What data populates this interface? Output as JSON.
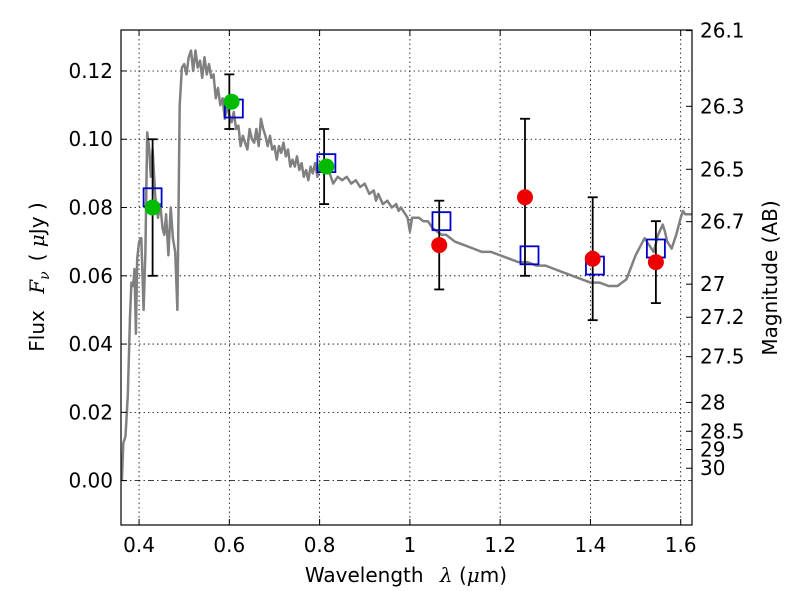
{
  "chart_data": {
    "type": "scatter",
    "xlabel": "Wavelength",
    "xlabel_symbol": "λ",
    "xlabel_unit_open": " (",
    "xlabel_unit_mu": "μ",
    "xlabel_unit_close": "m)",
    "ylabel": "Flux",
    "ylabel_symbol": "F",
    "ylabel_symbol_sub": "ν",
    "ylabel_unit_open": "( ",
    "ylabel_unit_mu": "μ",
    "ylabel_unit_close": "Jy )",
    "y2label": "Magnitude (AB)",
    "xlim": [
      0.36,
      1.625
    ],
    "ylim": [
      -0.013,
      0.132
    ],
    "grid": true,
    "x_ticks": [
      0.4,
      0.6,
      0.8,
      1.0,
      1.2,
      1.4,
      1.6
    ],
    "x_tick_labels": [
      "0.4",
      "0.6",
      "0.8",
      "1",
      "1.2",
      "1.4",
      "1.6"
    ],
    "y_ticks": [
      0.0,
      0.02,
      0.04,
      0.06,
      0.08,
      0.1,
      0.12
    ],
    "y_tick_labels": [
      "0.00",
      "0.02",
      "0.04",
      "0.06",
      "0.08",
      "0.10",
      "0.12"
    ],
    "y2_ticks": [
      {
        "mag": 26.1,
        "label": "26.1"
      },
      {
        "mag": 26.3,
        "label": "26.3"
      },
      {
        "mag": 26.5,
        "label": "26.5"
      },
      {
        "mag": 26.7,
        "label": "26.7"
      },
      {
        "mag": 27.0,
        "label": "27"
      },
      {
        "mag": 27.2,
        "label": "27.2"
      },
      {
        "mag": 27.5,
        "label": "27.5"
      },
      {
        "mag": 28.0,
        "label": "28"
      },
      {
        "mag": 28.5,
        "label": "28.5"
      },
      {
        "mag": 29.0,
        "label": "29"
      },
      {
        "mag": 30.0,
        "label": "30"
      }
    ],
    "series": [
      {
        "kind": "line",
        "color": "#808080",
        "points": [
          [
            0.362,
            0.0
          ],
          [
            0.365,
            0.011
          ],
          [
            0.37,
            0.013
          ],
          [
            0.375,
            0.025
          ],
          [
            0.38,
            0.048
          ],
          [
            0.383,
            0.058
          ],
          [
            0.387,
            0.057
          ],
          [
            0.39,
            0.062
          ],
          [
            0.393,
            0.043
          ],
          [
            0.396,
            0.065
          ],
          [
            0.4,
            0.07
          ],
          [
            0.405,
            0.071
          ],
          [
            0.41,
            0.05
          ],
          [
            0.414,
            0.067
          ],
          [
            0.418,
            0.102
          ],
          [
            0.422,
            0.098
          ],
          [
            0.426,
            0.089
          ],
          [
            0.43,
            0.097
          ],
          [
            0.436,
            0.083
          ],
          [
            0.442,
            0.077
          ],
          [
            0.447,
            0.081
          ],
          [
            0.452,
            0.074
          ],
          [
            0.456,
            0.072
          ],
          [
            0.46,
            0.078
          ],
          [
            0.465,
            0.066
          ],
          [
            0.47,
            0.08
          ],
          [
            0.475,
            0.071
          ],
          [
            0.48,
            0.067
          ],
          [
            0.485,
            0.05
          ],
          [
            0.49,
            0.11
          ],
          [
            0.495,
            0.121
          ],
          [
            0.5,
            0.122
          ],
          [
            0.505,
            0.119
          ],
          [
            0.51,
            0.124
          ],
          [
            0.515,
            0.126
          ],
          [
            0.52,
            0.12
          ],
          [
            0.525,
            0.126
          ],
          [
            0.53,
            0.121
          ],
          [
            0.535,
            0.123
          ],
          [
            0.54,
            0.118
          ],
          [
            0.545,
            0.124
          ],
          [
            0.55,
            0.119
          ],
          [
            0.555,
            0.122
          ],
          [
            0.56,
            0.118
          ],
          [
            0.565,
            0.119
          ],
          [
            0.57,
            0.112
          ],
          [
            0.575,
            0.115
          ],
          [
            0.58,
            0.11
          ],
          [
            0.585,
            0.112
          ],
          [
            0.59,
            0.106
          ],
          [
            0.595,
            0.11
          ],
          [
            0.6,
            0.107
          ],
          [
            0.605,
            0.105
          ],
          [
            0.61,
            0.108
          ],
          [
            0.615,
            0.103
          ],
          [
            0.62,
            0.104
          ],
          [
            0.625,
            0.098
          ],
          [
            0.63,
            0.101
          ],
          [
            0.635,
            0.099
          ],
          [
            0.64,
            0.097
          ],
          [
            0.645,
            0.103
          ],
          [
            0.65,
            0.1
          ],
          [
            0.655,
            0.099
          ],
          [
            0.66,
            0.103
          ],
          [
            0.665,
            0.098
          ],
          [
            0.67,
            0.106
          ],
          [
            0.675,
            0.103
          ],
          [
            0.68,
            0.101
          ],
          [
            0.685,
            0.098
          ],
          [
            0.69,
            0.101
          ],
          [
            0.695,
            0.097
          ],
          [
            0.7,
            0.098
          ],
          [
            0.705,
            0.094
          ],
          [
            0.71,
            0.098
          ],
          [
            0.715,
            0.096
          ],
          [
            0.72,
            0.099
          ],
          [
            0.725,
            0.095
          ],
          [
            0.73,
            0.097
          ],
          [
            0.735,
            0.092
          ],
          [
            0.74,
            0.094
          ],
          [
            0.745,
            0.092
          ],
          [
            0.75,
            0.095
          ],
          [
            0.755,
            0.091
          ],
          [
            0.76,
            0.093
          ],
          [
            0.765,
            0.089
          ],
          [
            0.77,
            0.091
          ],
          [
            0.775,
            0.088
          ],
          [
            0.78,
            0.092
          ],
          [
            0.785,
            0.09
          ],
          [
            0.79,
            0.093
          ],
          [
            0.795,
            0.089
          ],
          [
            0.8,
            0.092
          ],
          [
            0.81,
            0.09
          ],
          [
            0.82,
            0.091
          ],
          [
            0.83,
            0.087
          ],
          [
            0.84,
            0.089
          ],
          [
            0.85,
            0.088
          ],
          [
            0.86,
            0.089
          ],
          [
            0.87,
            0.087
          ],
          [
            0.88,
            0.088
          ],
          [
            0.89,
            0.086
          ],
          [
            0.9,
            0.087
          ],
          [
            0.91,
            0.084
          ],
          [
            0.92,
            0.085
          ],
          [
            0.925,
            0.082
          ],
          [
            0.93,
            0.084
          ],
          [
            0.94,
            0.081
          ],
          [
            0.95,
            0.082
          ],
          [
            0.96,
            0.08
          ],
          [
            0.97,
            0.081
          ],
          [
            0.975,
            0.079
          ],
          [
            0.98,
            0.08
          ],
          [
            0.99,
            0.078
          ],
          [
            0.995,
            0.077
          ],
          [
            1.0,
            0.073
          ],
          [
            1.005,
            0.077
          ],
          [
            1.01,
            0.077
          ],
          [
            1.02,
            0.077
          ],
          [
            1.03,
            0.076
          ],
          [
            1.04,
            0.076
          ],
          [
            1.05,
            0.074
          ],
          [
            1.06,
            0.073
          ],
          [
            1.07,
            0.072
          ],
          [
            1.08,
            0.072
          ],
          [
            1.09,
            0.071
          ],
          [
            1.1,
            0.07
          ],
          [
            1.12,
            0.069
          ],
          [
            1.14,
            0.068
          ],
          [
            1.16,
            0.067
          ],
          [
            1.18,
            0.067
          ],
          [
            1.2,
            0.066
          ],
          [
            1.22,
            0.065
          ],
          [
            1.24,
            0.064
          ],
          [
            1.26,
            0.064
          ],
          [
            1.28,
            0.063
          ],
          [
            1.3,
            0.063
          ],
          [
            1.32,
            0.062
          ],
          [
            1.34,
            0.061
          ],
          [
            1.36,
            0.06
          ],
          [
            1.38,
            0.059
          ],
          [
            1.4,
            0.058
          ],
          [
            1.42,
            0.058
          ],
          [
            1.44,
            0.057
          ],
          [
            1.46,
            0.057
          ],
          [
            1.48,
            0.059
          ],
          [
            1.5,
            0.066
          ],
          [
            1.52,
            0.071
          ],
          [
            1.54,
            0.067
          ],
          [
            1.55,
            0.072
          ],
          [
            1.56,
            0.075
          ],
          [
            1.565,
            0.073
          ],
          [
            1.57,
            0.07
          ],
          [
            1.58,
            0.068
          ],
          [
            1.59,
            0.072
          ],
          [
            1.6,
            0.077
          ],
          [
            1.605,
            0.079
          ],
          [
            1.61,
            0.078
          ],
          [
            1.625,
            0.078
          ]
        ]
      },
      {
        "kind": "errorbar",
        "color": "#000000",
        "points": [
          {
            "x": 0.43,
            "y": 0.08,
            "lo": 0.06,
            "hi": 0.1
          },
          {
            "x": 0.6,
            "y": 0.11,
            "lo": 0.103,
            "hi": 0.119
          },
          {
            "x": 0.81,
            "y": 0.092,
            "lo": 0.081,
            "hi": 0.103
          },
          {
            "x": 1.065,
            "y": 0.069,
            "lo": 0.056,
            "hi": 0.082
          },
          {
            "x": 1.255,
            "y": 0.083,
            "lo": 0.06,
            "hi": 0.106
          },
          {
            "x": 1.405,
            "y": 0.065,
            "lo": 0.047,
            "hi": 0.083
          },
          {
            "x": 1.545,
            "y": 0.064,
            "lo": 0.052,
            "hi": 0.076
          }
        ]
      },
      {
        "kind": "open-square",
        "color": "#0000cc",
        "points": [
          [
            0.43,
            0.083
          ],
          [
            0.61,
            0.109
          ],
          [
            0.815,
            0.093
          ],
          [
            1.07,
            0.076
          ],
          [
            1.265,
            0.066
          ],
          [
            1.41,
            0.063
          ],
          [
            1.545,
            0.068
          ]
        ]
      },
      {
        "kind": "filled-circle",
        "color": "#00bb00",
        "points": [
          [
            0.43,
            0.08
          ],
          [
            0.605,
            0.111
          ],
          [
            0.815,
            0.092
          ]
        ]
      },
      {
        "kind": "filled-circle",
        "color": "#ee0000",
        "points": [
          [
            1.065,
            0.069
          ],
          [
            1.255,
            0.083
          ],
          [
            1.405,
            0.065
          ],
          [
            1.545,
            0.064
          ]
        ]
      }
    ]
  }
}
